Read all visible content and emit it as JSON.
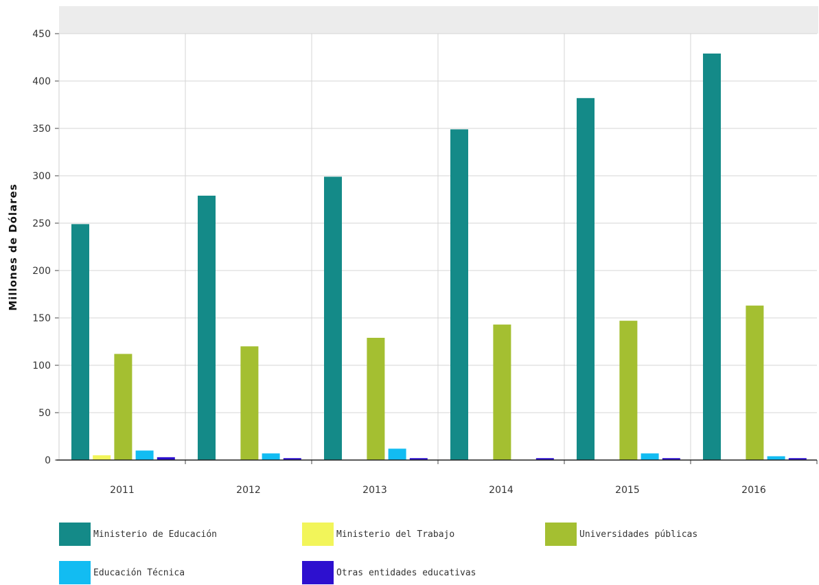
{
  "chart_data": {
    "type": "bar",
    "title": "",
    "xlabel": "",
    "ylabel": "Millones de Dólares",
    "ylim": [
      0,
      450
    ],
    "yticks": [
      0,
      50,
      100,
      150,
      200,
      250,
      300,
      350,
      400,
      450
    ],
    "categories": [
      "2011",
      "2012",
      "2013",
      "2014",
      "2015",
      "2016"
    ],
    "grid": true,
    "legend_position": "bottom",
    "series": [
      {
        "name": "Ministerio de Educación",
        "color": "#148a88",
        "values": [
          249,
          279,
          299,
          349,
          382,
          429
        ]
      },
      {
        "name": "Ministerio del Trabajo",
        "color": "#f2f55a",
        "values": [
          5,
          0,
          0,
          0,
          0,
          0
        ]
      },
      {
        "name": "Universidades públicas",
        "color": "#a4bf31",
        "values": [
          112,
          120,
          129,
          143,
          147,
          163
        ]
      },
      {
        "name": "Educación Técnica",
        "color": "#12bcf2",
        "values": [
          10,
          7,
          12,
          0,
          7,
          4
        ]
      },
      {
        "name": "Otras entidades educativas",
        "color": "#2d10cf",
        "values": [
          3,
          2,
          2,
          2,
          2,
          2
        ]
      }
    ]
  }
}
